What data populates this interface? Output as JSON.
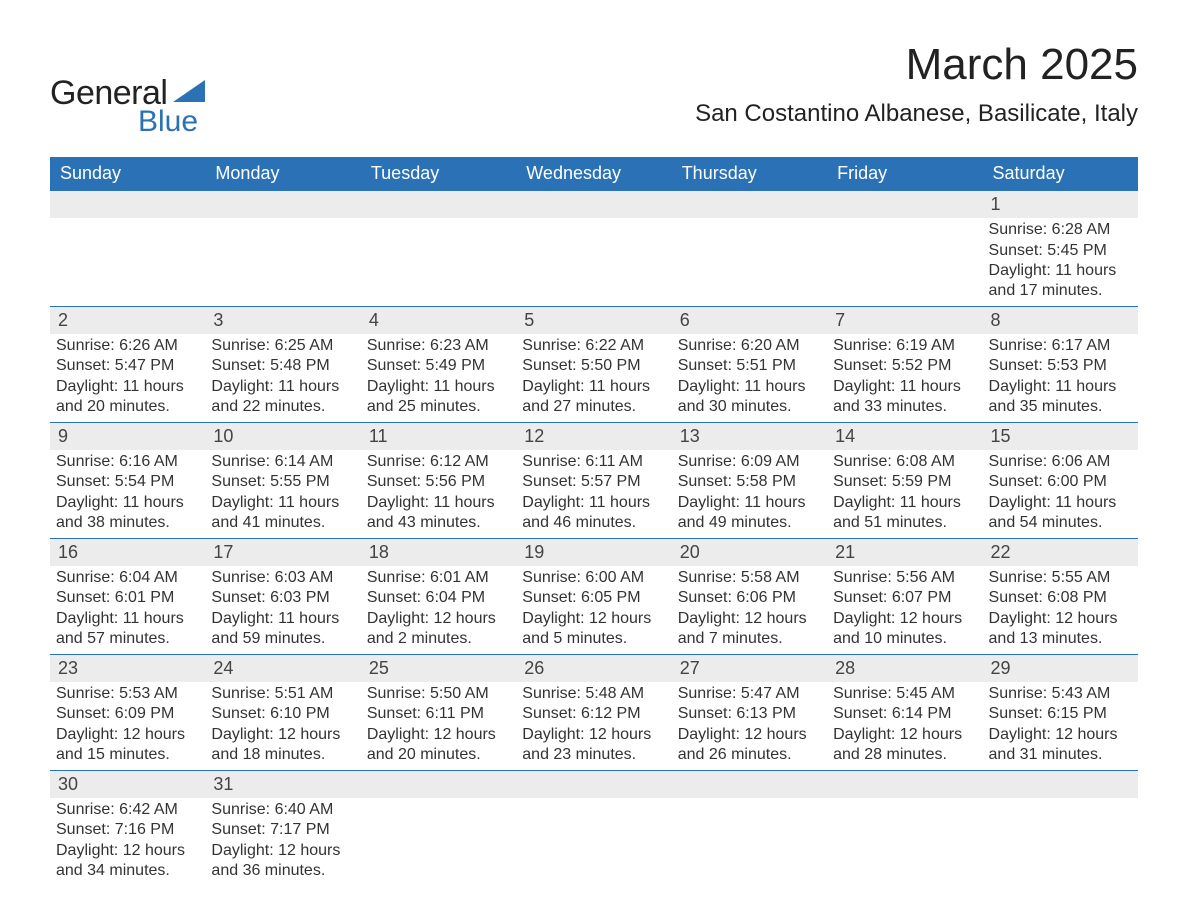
{
  "logo": {
    "general": "General",
    "blue": "Blue"
  },
  "title": "March 2025",
  "location": "San Costantino Albanese, Basilicate, Italy",
  "colors": {
    "header_bg": "#2a72b5",
    "stripe_bg": "#ececec",
    "border": "#2a72b5",
    "text": "#333333",
    "logo_blue": "#2a72b5"
  },
  "typography": {
    "month_title_pt": 44,
    "location_pt": 24,
    "th_pt": 18,
    "daynum_pt": 18,
    "body_pt": 16
  },
  "weekdays": [
    "Sunday",
    "Monday",
    "Tuesday",
    "Wednesday",
    "Thursday",
    "Friday",
    "Saturday"
  ],
  "weeks": [
    [
      null,
      null,
      null,
      null,
      null,
      null,
      {
        "day": "1",
        "sunrise": "Sunrise: 6:28 AM",
        "sunset": "Sunset: 5:45 PM",
        "daylight1": "Daylight: 11 hours",
        "daylight2": "and 17 minutes."
      }
    ],
    [
      {
        "day": "2",
        "sunrise": "Sunrise: 6:26 AM",
        "sunset": "Sunset: 5:47 PM",
        "daylight1": "Daylight: 11 hours",
        "daylight2": "and 20 minutes."
      },
      {
        "day": "3",
        "sunrise": "Sunrise: 6:25 AM",
        "sunset": "Sunset: 5:48 PM",
        "daylight1": "Daylight: 11 hours",
        "daylight2": "and 22 minutes."
      },
      {
        "day": "4",
        "sunrise": "Sunrise: 6:23 AM",
        "sunset": "Sunset: 5:49 PM",
        "daylight1": "Daylight: 11 hours",
        "daylight2": "and 25 minutes."
      },
      {
        "day": "5",
        "sunrise": "Sunrise: 6:22 AM",
        "sunset": "Sunset: 5:50 PM",
        "daylight1": "Daylight: 11 hours",
        "daylight2": "and 27 minutes."
      },
      {
        "day": "6",
        "sunrise": "Sunrise: 6:20 AM",
        "sunset": "Sunset: 5:51 PM",
        "daylight1": "Daylight: 11 hours",
        "daylight2": "and 30 minutes."
      },
      {
        "day": "7",
        "sunrise": "Sunrise: 6:19 AM",
        "sunset": "Sunset: 5:52 PM",
        "daylight1": "Daylight: 11 hours",
        "daylight2": "and 33 minutes."
      },
      {
        "day": "8",
        "sunrise": "Sunrise: 6:17 AM",
        "sunset": "Sunset: 5:53 PM",
        "daylight1": "Daylight: 11 hours",
        "daylight2": "and 35 minutes."
      }
    ],
    [
      {
        "day": "9",
        "sunrise": "Sunrise: 6:16 AM",
        "sunset": "Sunset: 5:54 PM",
        "daylight1": "Daylight: 11 hours",
        "daylight2": "and 38 minutes."
      },
      {
        "day": "10",
        "sunrise": "Sunrise: 6:14 AM",
        "sunset": "Sunset: 5:55 PM",
        "daylight1": "Daylight: 11 hours",
        "daylight2": "and 41 minutes."
      },
      {
        "day": "11",
        "sunrise": "Sunrise: 6:12 AM",
        "sunset": "Sunset: 5:56 PM",
        "daylight1": "Daylight: 11 hours",
        "daylight2": "and 43 minutes."
      },
      {
        "day": "12",
        "sunrise": "Sunrise: 6:11 AM",
        "sunset": "Sunset: 5:57 PM",
        "daylight1": "Daylight: 11 hours",
        "daylight2": "and 46 minutes."
      },
      {
        "day": "13",
        "sunrise": "Sunrise: 6:09 AM",
        "sunset": "Sunset: 5:58 PM",
        "daylight1": "Daylight: 11 hours",
        "daylight2": "and 49 minutes."
      },
      {
        "day": "14",
        "sunrise": "Sunrise: 6:08 AM",
        "sunset": "Sunset: 5:59 PM",
        "daylight1": "Daylight: 11 hours",
        "daylight2": "and 51 minutes."
      },
      {
        "day": "15",
        "sunrise": "Sunrise: 6:06 AM",
        "sunset": "Sunset: 6:00 PM",
        "daylight1": "Daylight: 11 hours",
        "daylight2": "and 54 minutes."
      }
    ],
    [
      {
        "day": "16",
        "sunrise": "Sunrise: 6:04 AM",
        "sunset": "Sunset: 6:01 PM",
        "daylight1": "Daylight: 11 hours",
        "daylight2": "and 57 minutes."
      },
      {
        "day": "17",
        "sunrise": "Sunrise: 6:03 AM",
        "sunset": "Sunset: 6:03 PM",
        "daylight1": "Daylight: 11 hours",
        "daylight2": "and 59 minutes."
      },
      {
        "day": "18",
        "sunrise": "Sunrise: 6:01 AM",
        "sunset": "Sunset: 6:04 PM",
        "daylight1": "Daylight: 12 hours",
        "daylight2": "and 2 minutes."
      },
      {
        "day": "19",
        "sunrise": "Sunrise: 6:00 AM",
        "sunset": "Sunset: 6:05 PM",
        "daylight1": "Daylight: 12 hours",
        "daylight2": "and 5 minutes."
      },
      {
        "day": "20",
        "sunrise": "Sunrise: 5:58 AM",
        "sunset": "Sunset: 6:06 PM",
        "daylight1": "Daylight: 12 hours",
        "daylight2": "and 7 minutes."
      },
      {
        "day": "21",
        "sunrise": "Sunrise: 5:56 AM",
        "sunset": "Sunset: 6:07 PM",
        "daylight1": "Daylight: 12 hours",
        "daylight2": "and 10 minutes."
      },
      {
        "day": "22",
        "sunrise": "Sunrise: 5:55 AM",
        "sunset": "Sunset: 6:08 PM",
        "daylight1": "Daylight: 12 hours",
        "daylight2": "and 13 minutes."
      }
    ],
    [
      {
        "day": "23",
        "sunrise": "Sunrise: 5:53 AM",
        "sunset": "Sunset: 6:09 PM",
        "daylight1": "Daylight: 12 hours",
        "daylight2": "and 15 minutes."
      },
      {
        "day": "24",
        "sunrise": "Sunrise: 5:51 AM",
        "sunset": "Sunset: 6:10 PM",
        "daylight1": "Daylight: 12 hours",
        "daylight2": "and 18 minutes."
      },
      {
        "day": "25",
        "sunrise": "Sunrise: 5:50 AM",
        "sunset": "Sunset: 6:11 PM",
        "daylight1": "Daylight: 12 hours",
        "daylight2": "and 20 minutes."
      },
      {
        "day": "26",
        "sunrise": "Sunrise: 5:48 AM",
        "sunset": "Sunset: 6:12 PM",
        "daylight1": "Daylight: 12 hours",
        "daylight2": "and 23 minutes."
      },
      {
        "day": "27",
        "sunrise": "Sunrise: 5:47 AM",
        "sunset": "Sunset: 6:13 PM",
        "daylight1": "Daylight: 12 hours",
        "daylight2": "and 26 minutes."
      },
      {
        "day": "28",
        "sunrise": "Sunrise: 5:45 AM",
        "sunset": "Sunset: 6:14 PM",
        "daylight1": "Daylight: 12 hours",
        "daylight2": "and 28 minutes."
      },
      {
        "day": "29",
        "sunrise": "Sunrise: 5:43 AM",
        "sunset": "Sunset: 6:15 PM",
        "daylight1": "Daylight: 12 hours",
        "daylight2": "and 31 minutes."
      }
    ],
    [
      {
        "day": "30",
        "sunrise": "Sunrise: 6:42 AM",
        "sunset": "Sunset: 7:16 PM",
        "daylight1": "Daylight: 12 hours",
        "daylight2": "and 34 minutes."
      },
      {
        "day": "31",
        "sunrise": "Sunrise: 6:40 AM",
        "sunset": "Sunset: 7:17 PM",
        "daylight1": "Daylight: 12 hours",
        "daylight2": "and 36 minutes."
      },
      null,
      null,
      null,
      null,
      null
    ]
  ]
}
